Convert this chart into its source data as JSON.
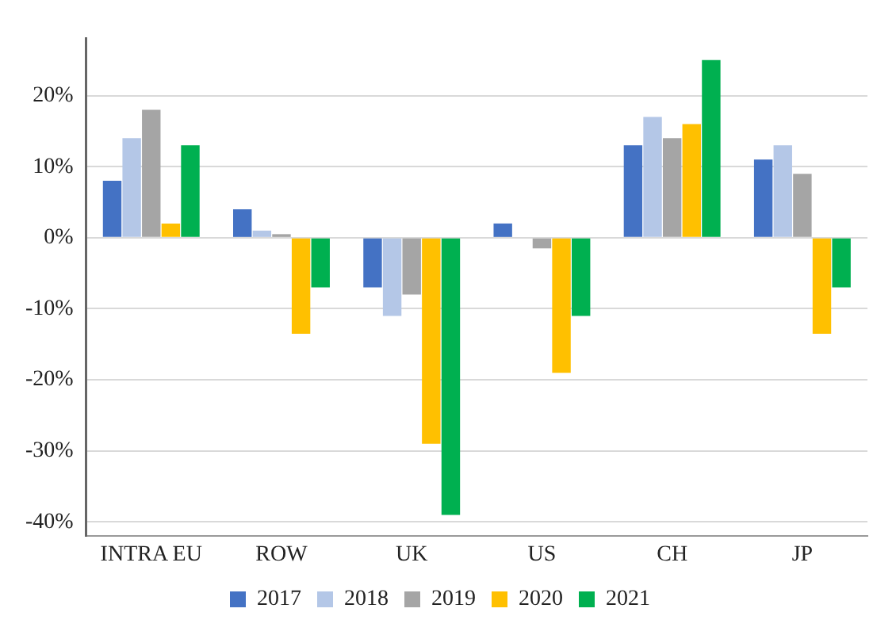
{
  "chart_data": {
    "type": "bar",
    "categories": [
      "INTRA EU",
      "ROW",
      "UK",
      "US",
      "CH",
      "JP"
    ],
    "series": [
      {
        "name": "2017",
        "color": "#4472c4",
        "values": [
          8,
          4,
          -7,
          2,
          13,
          11
        ]
      },
      {
        "name": "2018",
        "color": "#b4c7e7",
        "values": [
          14,
          1,
          -11,
          0,
          17,
          13
        ]
      },
      {
        "name": "2019",
        "color": "#a5a5a5",
        "values": [
          18,
          0.5,
          -8,
          -1.5,
          14,
          9
        ]
      },
      {
        "name": "2020",
        "color": "#ffc000",
        "values": [
          2,
          -13.5,
          -29,
          -19,
          16,
          -13.5
        ]
      },
      {
        "name": "2021",
        "color": "#00b050",
        "values": [
          13,
          -7,
          -39,
          -11,
          25,
          -7
        ]
      }
    ],
    "ylim": [
      -42,
      28
    ],
    "yticks": [
      {
        "value": -40,
        "label": "-40%"
      },
      {
        "value": -30,
        "label": "-30%"
      },
      {
        "value": -20,
        "label": "-20%"
      },
      {
        "value": -10,
        "label": "-10%"
      },
      {
        "value": 0,
        "label": "0%"
      },
      {
        "value": 10,
        "label": "10%"
      },
      {
        "value": 20,
        "label": "20%"
      }
    ],
    "grid": "y",
    "legend": "bottom"
  }
}
